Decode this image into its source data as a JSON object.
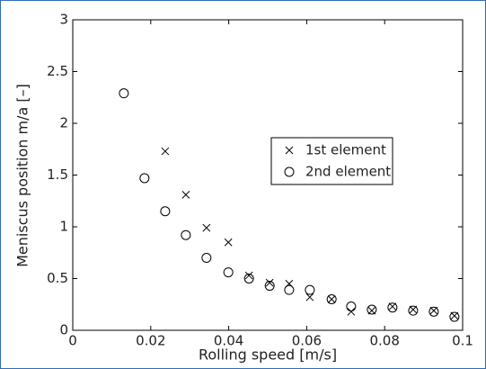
{
  "chart_data": {
    "type": "scatter",
    "x_label": "Rolling speed [m/s]",
    "y_label": "Meniscus position m/a [–]",
    "xlim": [
      0,
      0.1
    ],
    "xticks": [
      0,
      0.02,
      0.04,
      0.06,
      0.08,
      0.1
    ],
    "ylim": [
      0,
      3
    ],
    "yticks": [
      0,
      0.5,
      1,
      1.5,
      2,
      2.5,
      3
    ],
    "legend": "upper-right-inside",
    "series": [
      {
        "name": "1st element",
        "marker": "x",
        "color": "#000000",
        "x": [
          0.0237,
          0.029,
          0.0343,
          0.0399,
          0.0452,
          0.0505,
          0.0555,
          0.0608,
          0.0664,
          0.0714,
          0.0767,
          0.082,
          0.0873,
          0.0926,
          0.0979
        ],
        "values": [
          1.73,
          1.31,
          0.99,
          0.85,
          0.53,
          0.46,
          0.45,
          0.32,
          0.3,
          0.18,
          0.19,
          0.23,
          0.2,
          0.19,
          0.14
        ]
      },
      {
        "name": "2nd element",
        "marker": "o",
        "color": "#000000",
        "x": [
          0.0131,
          0.0184,
          0.0237,
          0.029,
          0.0343,
          0.0399,
          0.0452,
          0.0505,
          0.0555,
          0.0608,
          0.0664,
          0.0714,
          0.0767,
          0.082,
          0.0873,
          0.0926,
          0.0979
        ],
        "values": [
          2.29,
          1.47,
          1.15,
          0.92,
          0.7,
          0.56,
          0.5,
          0.43,
          0.39,
          0.39,
          0.3,
          0.23,
          0.2,
          0.22,
          0.19,
          0.18,
          0.13
        ]
      }
    ]
  }
}
